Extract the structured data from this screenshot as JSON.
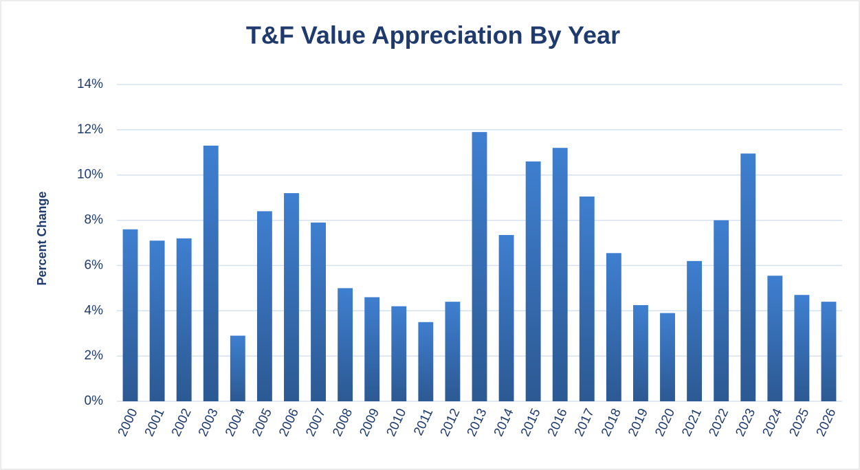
{
  "chart_data": {
    "type": "bar",
    "title": "T&F Value Appreciation By Year",
    "y_label": "Percent Change",
    "categories": [
      "2000",
      "2001",
      "2002",
      "2003",
      "2004",
      "2005",
      "2006",
      "2007",
      "2008",
      "2009",
      "2010",
      "2011",
      "2012",
      "2013",
      "2014",
      "2015",
      "2016",
      "2017",
      "2018",
      "2019",
      "2020",
      "2021",
      "2022",
      "2023",
      "2024",
      "2025",
      "2026"
    ],
    "values": [
      7.6,
      7.1,
      7.2,
      11.3,
      2.9,
      8.4,
      9.2,
      7.9,
      5.0,
      4.6,
      4.2,
      3.5,
      4.4,
      11.9,
      7.35,
      10.6,
      11.2,
      9.05,
      6.55,
      4.25,
      3.9,
      6.2,
      8.0,
      10.95,
      5.55,
      4.7,
      4.4
    ],
    "color": "#3f7fd0",
    "ylim": [
      0,
      14
    ],
    "yticks": [
      {
        "value": 0,
        "label": "0%"
      },
      {
        "value": 2,
        "label": "2%"
      },
      {
        "value": 4,
        "label": "4%"
      },
      {
        "value": 6,
        "label": "6%"
      },
      {
        "value": 8,
        "label": "8%"
      },
      {
        "value": 10,
        "label": "10%"
      },
      {
        "value": 12,
        "label": "12%"
      },
      {
        "value": 14,
        "label": "14%"
      }
    ],
    "grid": true
  }
}
